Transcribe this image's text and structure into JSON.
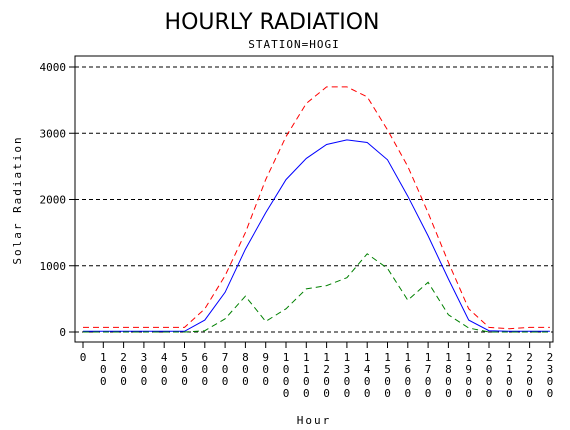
{
  "chart_data": {
    "type": "line",
    "title": "HOURLY RADIATION",
    "subtitle": "STATION=HOGI",
    "xlabel": "Hour",
    "ylabel": "Solar Radiation",
    "ylim": [
      0,
      4000
    ],
    "yticks": [
      0,
      1000,
      2000,
      3000,
      4000
    ],
    "ytick_labels": [
      "0",
      "1000",
      "2000",
      "3000",
      "4000"
    ],
    "grid": "horizontal dashed at y ticks",
    "legend": "none",
    "x": [
      0,
      100,
      200,
      300,
      400,
      500,
      600,
      700,
      800,
      900,
      1000,
      1100,
      1200,
      1300,
      1400,
      1500,
      1600,
      1700,
      1800,
      1900,
      2000,
      2100,
      2200,
      2300
    ],
    "xtick_labels": [
      "0",
      "100",
      "200",
      "300",
      "400",
      "500",
      "600",
      "700",
      "800",
      "900",
      "1000",
      "1100",
      "1200",
      "1300",
      "1400",
      "1500",
      "1600",
      "1700",
      "1800",
      "1900",
      "2000",
      "2100",
      "2200",
      "2300"
    ],
    "series": [
      {
        "color": "#ff0000",
        "dash": "6,4",
        "values": [
          70,
          70,
          70,
          70,
          70,
          70,
          350,
          850,
          1500,
          2300,
          2950,
          3450,
          3700,
          3700,
          3550,
          3050,
          2500,
          1800,
          1050,
          350,
          70,
          50,
          70,
          70
        ]
      },
      {
        "color": "#0000ff",
        "dash": "",
        "values": [
          10,
          10,
          10,
          10,
          10,
          10,
          180,
          600,
          1250,
          1800,
          2300,
          2620,
          2830,
          2900,
          2860,
          2600,
          2050,
          1450,
          800,
          180,
          20,
          10,
          10,
          10
        ]
      },
      {
        "color": "#008000",
        "dash": "6,4",
        "values": [
          0,
          0,
          0,
          0,
          0,
          0,
          20,
          200,
          540,
          160,
          350,
          650,
          700,
          820,
          1180,
          960,
          480,
          750,
          260,
          60,
          0,
          0,
          0,
          0
        ]
      }
    ]
  }
}
